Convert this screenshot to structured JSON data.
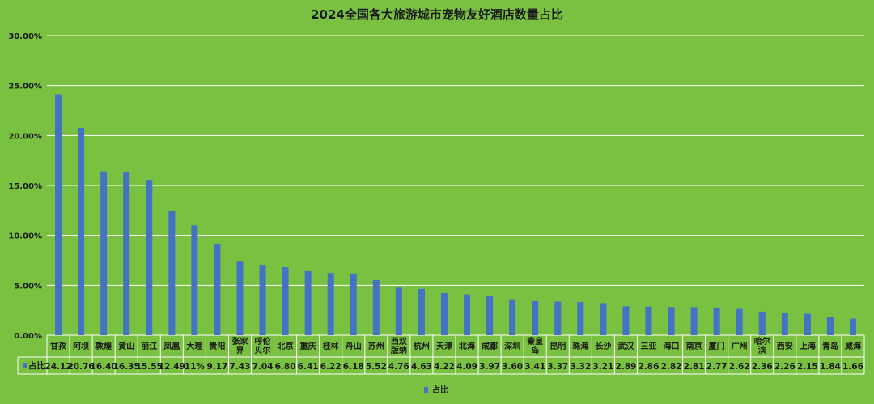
{
  "chart_data": {
    "type": "bar",
    "title": "2024全国各大旅游城市宠物友好酒店数量占比",
    "y_ticks": [
      "0.00%",
      "5.00%",
      "10.00%",
      "15.00%",
      "20.00%",
      "25.00%",
      "30.00%"
    ],
    "ylim": [
      0,
      30
    ],
    "grid": true,
    "legend_position": "bottom",
    "series": [
      {
        "name": "占比",
        "color": "#4472c4",
        "values": [
          24.12,
          20.76,
          16.4,
          16.35,
          15.55,
          12.49,
          11,
          9.17,
          7.43,
          7.04,
          6.8,
          6.41,
          6.22,
          6.18,
          5.52,
          4.76,
          4.63,
          4.22,
          4.09,
          3.97,
          3.6,
          3.41,
          3.37,
          3.32,
          3.21,
          2.89,
          2.86,
          2.82,
          2.81,
          2.77,
          2.62,
          2.36,
          2.26,
          2.15,
          1.84,
          1.66
        ],
        "labels": [
          "24.12",
          "20.76",
          "16.40",
          "16.35",
          "15.55",
          "12.49",
          "11%",
          "9.17",
          "7.43",
          "7.04",
          "6.80",
          "6.41",
          "6.22",
          "6.18",
          "5.52",
          "4.76",
          "4.63",
          "4.22",
          "4.09",
          "3.97",
          "3.60",
          "3.41",
          "3.37",
          "3.32",
          "3.21",
          "2.89",
          "2.86",
          "2.82",
          "2.81",
          "2.77",
          "2.62",
          "2.36",
          "2.26",
          "2.15",
          "1.84",
          "1.66"
        ]
      }
    ],
    "categories": [
      "甘孜",
      "阿坝",
      "敦煌",
      "黄山",
      "丽江",
      "凤凰",
      "大理",
      "贵阳",
      "张家界",
      "呼伦贝尔",
      "北京",
      "重庆",
      "桂林",
      "舟山",
      "苏州",
      "西双版纳",
      "杭州",
      "天津",
      "北海",
      "成都",
      "深圳",
      "秦皇岛",
      "昆明",
      "珠海",
      "长沙",
      "武汉",
      "三亚",
      "海口",
      "南京",
      "厦门",
      "广州",
      "哈尔滨",
      "西安",
      "上海",
      "青岛",
      "威海"
    ],
    "legend": [
      "占比"
    ]
  }
}
